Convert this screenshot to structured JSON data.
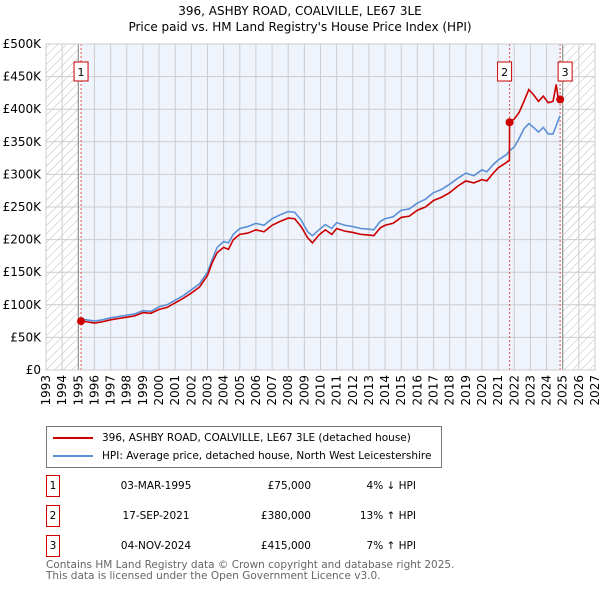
{
  "chart_data": {
    "type": "line",
    "title": "396, ASHBY ROAD, COALVILLE, LE67 3LE",
    "subtitle": "Price paid vs. HM Land Registry's House Price Index (HPI)",
    "xlim": [
      1993,
      2027
    ],
    "ylim": [
      0,
      500000
    ],
    "x_ticks": [
      "1993",
      "1994",
      "1995",
      "1996",
      "1997",
      "1998",
      "1999",
      "2000",
      "2001",
      "2002",
      "2003",
      "2004",
      "2005",
      "2006",
      "2007",
      "2008",
      "2009",
      "2010",
      "2011",
      "2012",
      "2013",
      "2014",
      "2015",
      "2016",
      "2017",
      "2018",
      "2019",
      "2020",
      "2021",
      "2022",
      "2023",
      "2024",
      "2025",
      "2026",
      "2027"
    ],
    "y_ticks": [
      "£0",
      "£50K",
      "£100K",
      "£150K",
      "£200K",
      "£250K",
      "£300K",
      "£350K",
      "£400K",
      "£450K",
      "£500K"
    ],
    "grid": true,
    "series": [
      {
        "name": "396, ASHBY ROAD, COALVILLE, LE67 3LE (detached house)",
        "color": "#cc0000",
        "x": [
          1995.17,
          1995.5,
          1996,
          1996.5,
          1997,
          1997.5,
          1998,
          1998.5,
          1999,
          1999.5,
          2000,
          2000.5,
          2001,
          2001.5,
          2002,
          2002.5,
          2003,
          2003.3,
          2003.6,
          2004,
          2004.3,
          2004.6,
          2005,
          2005.5,
          2006,
          2006.5,
          2007,
          2007.5,
          2008,
          2008.4,
          2008.8,
          2009.2,
          2009.5,
          2009.9,
          2010.3,
          2010.7,
          2011,
          2011.5,
          2012,
          2012.5,
          2013,
          2013.3,
          2013.7,
          2014,
          2014.5,
          2015,
          2015.5,
          2016,
          2016.5,
          2017,
          2017.5,
          2018,
          2018.5,
          2019,
          2019.5,
          2020,
          2020.3,
          2020.7,
          2021,
          2021.5,
          2021.7,
          2021.71,
          2022,
          2022.3,
          2022.6,
          2022.9,
          2023.2,
          2023.5,
          2023.8,
          2024.1,
          2024.4,
          2024.6,
          2024.7,
          2024.84
        ],
        "y": [
          75000,
          74000,
          72000,
          74000,
          77000,
          79000,
          81000,
          83000,
          88000,
          87000,
          93000,
          96000,
          103000,
          110000,
          118000,
          127000,
          145000,
          165000,
          180000,
          188000,
          185000,
          200000,
          208000,
          210000,
          215000,
          212000,
          222000,
          228000,
          233000,
          232000,
          220000,
          203000,
          195000,
          207000,
          215000,
          208000,
          217000,
          213000,
          211000,
          208000,
          207000,
          206000,
          218000,
          222000,
          225000,
          234000,
          236000,
          245000,
          250000,
          260000,
          265000,
          272000,
          282000,
          290000,
          287000,
          292000,
          290000,
          302000,
          310000,
          318000,
          322000,
          380000,
          385000,
          395000,
          412000,
          430000,
          422000,
          412000,
          420000,
          410000,
          412000,
          438000,
          420000,
          415000
        ]
      },
      {
        "name": "HPI: Average price, detached house, North West Leicestershire",
        "color": "#5b8fd6",
        "x": [
          1995.17,
          1995.5,
          1996,
          1996.5,
          1997,
          1997.5,
          1998,
          1998.5,
          1999,
          1999.5,
          2000,
          2000.5,
          2001,
          2001.5,
          2002,
          2002.5,
          2003,
          2003.3,
          2003.6,
          2004,
          2004.3,
          2004.6,
          2005,
          2005.5,
          2006,
          2006.5,
          2007,
          2007.5,
          2008,
          2008.4,
          2008.8,
          2009.2,
          2009.5,
          2009.9,
          2010.3,
          2010.7,
          2011,
          2011.5,
          2012,
          2012.5,
          2013,
          2013.3,
          2013.7,
          2014,
          2014.5,
          2015,
          2015.5,
          2016,
          2016.5,
          2017,
          2017.5,
          2018,
          2018.5,
          2019,
          2019.5,
          2020,
          2020.3,
          2020.7,
          2021,
          2021.5,
          2021.7,
          2022,
          2022.3,
          2022.6,
          2022.9,
          2023.2,
          2023.5,
          2023.8,
          2024.1,
          2024.4,
          2024.6,
          2024.84
        ],
        "y": [
          78000,
          77000,
          75000,
          77000,
          80000,
          82000,
          84000,
          86000,
          91000,
          90000,
          97000,
          100000,
          107000,
          114000,
          123000,
          132000,
          150000,
          170000,
          188000,
          197000,
          195000,
          208000,
          217000,
          220000,
          225000,
          222000,
          232000,
          238000,
          243000,
          242000,
          230000,
          212000,
          206000,
          215000,
          223000,
          217000,
          226000,
          222000,
          220000,
          217000,
          216000,
          215000,
          228000,
          232000,
          235000,
          245000,
          247000,
          256000,
          262000,
          272000,
          277000,
          285000,
          294000,
          302000,
          298000,
          307000,
          304000,
          315000,
          322000,
          330000,
          336000,
          342000,
          355000,
          370000,
          378000,
          372000,
          365000,
          372000,
          362000,
          362000,
          375000,
          390000
        ]
      }
    ],
    "sales": [
      {
        "label": "1",
        "x": 1995.17,
        "y": 75000,
        "date": "03-MAR-1995",
        "price": "£75,000",
        "hpi": "4% ↓ HPI"
      },
      {
        "label": "2",
        "x": 2021.71,
        "y": 380000,
        "date": "17-SEP-2021",
        "price": "£380,000",
        "hpi": "13% ↑ HPI"
      },
      {
        "label": "3",
        "x": 2024.84,
        "y": 415000,
        "date": "04-NOV-2024",
        "price": "£415,000",
        "hpi": "7% ↑ HPI"
      }
    ]
  },
  "header": {
    "title": "396, ASHBY ROAD, COALVILLE, LE67 3LE",
    "subtitle": "Price paid vs. HM Land Registry's House Price Index (HPI)"
  },
  "legend": {
    "red": "396, ASHBY ROAD, COALVILLE, LE67 3LE (detached house)",
    "blue": "HPI: Average price, detached house, North West Leicestershire"
  },
  "footer": {
    "line1": "Contains HM Land Registry data © Crown copyright and database right 2025.",
    "line2": "This data is licensed under the Open Government Licence v3.0."
  }
}
